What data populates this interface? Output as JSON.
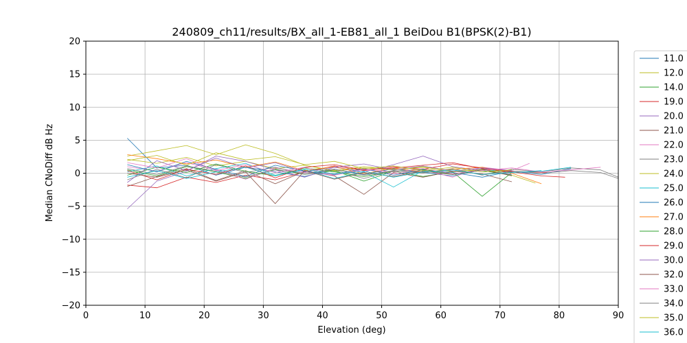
{
  "chart_data": {
    "type": "line",
    "title": "240809_ch11/results/BX_all_1-EB81_all_1 BeiDou B1(BPSK(2)-B1)",
    "xlabel": "Elevation (deg)",
    "ylabel": "Median CNoDiff dB Hz",
    "xlim": [
      0,
      90
    ],
    "ylim": [
      -20,
      20
    ],
    "xticks": [
      "0",
      "10",
      "20",
      "30",
      "40",
      "50",
      "60",
      "70",
      "80",
      "90"
    ],
    "yticks": [
      "−20",
      "−15",
      "−10",
      "−5",
      "0",
      "5",
      "10",
      "15",
      "20"
    ],
    "grid": true,
    "legend_position": "outside-right",
    "series": [
      {
        "name": "11.0",
        "color": "#1f77b4",
        "x": [
          7,
          12,
          17,
          22,
          27,
          32,
          37,
          42,
          47,
          52,
          57,
          62,
          67,
          72
        ],
        "y": [
          5.3,
          0.8,
          1.2,
          -0.3,
          0.9,
          0.2,
          -0.5,
          0.6,
          -0.2,
          0.7,
          0.1,
          -0.4,
          0.5,
          0.2
        ]
      },
      {
        "name": "12.0",
        "color": "#bcbd22",
        "x": [
          7,
          12,
          17,
          22,
          27,
          32,
          37,
          42,
          47,
          52,
          57,
          62,
          67,
          72,
          76
        ],
        "y": [
          2.1,
          1.5,
          2.4,
          1.1,
          1.8,
          0.7,
          1.2,
          0.3,
          0.8,
          0.5,
          1.0,
          0.2,
          0.6,
          -0.3,
          -1.5
        ]
      },
      {
        "name": "14.0",
        "color": "#2ca02c",
        "x": [
          7,
          12,
          17,
          22,
          27,
          32,
          37,
          42,
          47,
          52,
          57,
          62,
          67,
          72
        ],
        "y": [
          0.5,
          -0.4,
          1.0,
          0.2,
          -0.8,
          0.6,
          -0.2,
          0.4,
          -1.2,
          0.3,
          -0.5,
          0.2,
          -3.5,
          0.1
        ]
      },
      {
        "name": "19.0",
        "color": "#d62728",
        "x": [
          7,
          12,
          17,
          22,
          27,
          32,
          37,
          42,
          47,
          52,
          57,
          62,
          67,
          72,
          78
        ],
        "y": [
          -1.8,
          -2.2,
          -0.6,
          -1.4,
          -0.3,
          -1.0,
          0.2,
          1.1,
          0.4,
          1.0,
          0.6,
          1.4,
          0.8,
          0.3,
          0.1
        ]
      },
      {
        "name": "20.0",
        "color": "#9467bd",
        "x": [
          7,
          12,
          17,
          22,
          27,
          32,
          37,
          42,
          47,
          52,
          57,
          62,
          67,
          72
        ],
        "y": [
          -5.4,
          -1.2,
          0.3,
          2.6,
          1.8,
          0.5,
          -0.6,
          0.9,
          0.2,
          1.3,
          2.6,
          1.0,
          0.4,
          -0.2
        ]
      },
      {
        "name": "21.0",
        "color": "#8c564b",
        "x": [
          7,
          12,
          17,
          22,
          27,
          32,
          37,
          42,
          47,
          52,
          57,
          62,
          67,
          72
        ],
        "y": [
          -2.0,
          -0.5,
          0.7,
          -1.1,
          0.4,
          -1.6,
          0.3,
          -0.4,
          -3.2,
          0.1,
          -0.6,
          0.3,
          -0.1,
          -1.3
        ]
      },
      {
        "name": "22.0",
        "color": "#e377c2",
        "x": [
          7,
          12,
          17,
          22,
          27,
          32,
          37,
          42,
          47,
          52,
          57,
          62,
          67,
          72,
          75
        ],
        "y": [
          1.0,
          0.3,
          1.6,
          0.5,
          -0.9,
          0.8,
          0.1,
          -0.3,
          0.6,
          -0.1,
          0.5,
          -0.6,
          0.9,
          0.4,
          1.5
        ]
      },
      {
        "name": "23.0",
        "color": "#7f7f7f",
        "x": [
          7,
          12,
          17,
          22,
          27,
          32,
          37,
          42,
          47,
          52,
          57,
          62,
          67,
          72,
          77,
          82,
          87,
          90
        ],
        "y": [
          -1.0,
          0.6,
          -0.7,
          1.3,
          0.1,
          0.9,
          -0.2,
          0.5,
          -0.8,
          0.4,
          0.0,
          0.7,
          -0.3,
          0.6,
          0.2,
          0.8,
          0.5,
          -0.6
        ]
      },
      {
        "name": "24.0",
        "color": "#bcbd22",
        "x": [
          7,
          12,
          17,
          22,
          27,
          32,
          37,
          42,
          47,
          52,
          57,
          62,
          67,
          72
        ],
        "y": [
          2.6,
          3.4,
          4.2,
          2.8,
          4.3,
          3.0,
          1.2,
          0.4,
          1.0,
          0.6,
          0.9,
          0.3,
          0.5,
          0.1
        ]
      },
      {
        "name": "25.0",
        "color": "#17becf",
        "x": [
          7,
          12,
          17,
          22,
          27,
          32,
          37,
          42,
          47,
          52,
          57,
          62,
          67,
          72,
          77,
          82
        ],
        "y": [
          0.2,
          1.1,
          -0.4,
          0.7,
          1.5,
          -0.3,
          0.5,
          -0.8,
          0.2,
          -2.1,
          0.4,
          -0.2,
          0.6,
          0.1,
          0.3,
          0.9
        ]
      },
      {
        "name": "26.0",
        "color": "#1f77b4",
        "x": [
          7,
          12,
          17,
          22,
          27,
          32,
          37,
          42,
          47,
          52,
          57,
          62,
          67,
          72,
          77,
          82
        ],
        "y": [
          1.3,
          0.2,
          1.8,
          0.6,
          -0.5,
          1.2,
          0.3,
          -0.2,
          0.7,
          -0.3,
          0.5,
          0.1,
          -0.6,
          0.3,
          -0.2,
          0.7
        ]
      },
      {
        "name": "27.0",
        "color": "#ff7f0e",
        "x": [
          7,
          12,
          17,
          22,
          27,
          32,
          37,
          42,
          47,
          52,
          57,
          62,
          67,
          72,
          77
        ],
        "y": [
          2.8,
          2.2,
          1.4,
          2.0,
          0.9,
          1.7,
          0.4,
          1.0,
          -0.1,
          0.8,
          0.2,
          0.6,
          0.9,
          0.0,
          -1.6
        ]
      },
      {
        "name": "28.0",
        "color": "#2ca02c",
        "x": [
          7,
          12,
          17,
          22,
          27,
          32,
          37,
          42,
          47,
          52,
          57,
          62,
          67,
          72
        ],
        "y": [
          -0.3,
          0.9,
          0.1,
          1.4,
          0.3,
          -0.4,
          0.8,
          0.2,
          -0.5,
          0.3,
          0.6,
          -0.2,
          0.4,
          -0.3
        ]
      },
      {
        "name": "29.0",
        "color": "#d62728",
        "x": [
          7,
          12,
          17,
          22,
          27,
          32,
          37,
          42,
          47,
          52,
          57,
          62,
          67,
          72,
          77,
          81
        ],
        "y": [
          0.4,
          -1.0,
          0.6,
          -0.2,
          1.1,
          -0.7,
          0.9,
          1.3,
          0.5,
          0.8,
          1.2,
          1.6,
          0.7,
          0.2,
          -0.4,
          -0.6
        ]
      },
      {
        "name": "30.0",
        "color": "#9467bd",
        "x": [
          7,
          12,
          17,
          22,
          27,
          32,
          37,
          42,
          47,
          52,
          57,
          62,
          67,
          72
        ],
        "y": [
          -1.4,
          1.9,
          0.4,
          2.3,
          0.8,
          1.6,
          0.2,
          0.9,
          1.4,
          0.5,
          1.1,
          0.3,
          0.8,
          0.4
        ]
      },
      {
        "name": "32.0",
        "color": "#8c564b",
        "x": [
          7,
          12,
          17,
          22,
          27,
          32,
          37,
          42,
          47,
          52,
          57,
          62,
          67,
          72
        ],
        "y": [
          0.0,
          -0.6,
          0.5,
          -1.2,
          0.2,
          -4.6,
          0.4,
          -0.9,
          0.1,
          -0.5,
          0.3,
          -0.2,
          0.6,
          -0.4
        ]
      },
      {
        "name": "33.0",
        "color": "#e377c2",
        "x": [
          7,
          12,
          17,
          22,
          27,
          32,
          37,
          42,
          47,
          52,
          57,
          62,
          67,
          72,
          77,
          82,
          87
        ],
        "y": [
          1.6,
          0.8,
          2.2,
          0.4,
          1.3,
          0.1,
          0.9,
          -0.3,
          0.6,
          0.2,
          0.7,
          -0.1,
          0.4,
          0.8,
          0.2,
          0.5,
          0.9
        ]
      },
      {
        "name": "34.0",
        "color": "#7f7f7f",
        "x": [
          7,
          12,
          17,
          22,
          27,
          32,
          37,
          42,
          47,
          52,
          57,
          62,
          67,
          72,
          77,
          82,
          87,
          90
        ],
        "y": [
          0.7,
          -0.2,
          1.1,
          0.3,
          -0.6,
          0.5,
          0.0,
          0.6,
          -0.3,
          0.4,
          0.1,
          0.5,
          -0.2,
          0.3,
          0.0,
          0.4,
          0.1,
          -0.8
        ]
      },
      {
        "name": "35.0",
        "color": "#bcbd22",
        "x": [
          7,
          12,
          17,
          22,
          27,
          32,
          37,
          42,
          47,
          52,
          57,
          62,
          67,
          72
        ],
        "y": [
          1.9,
          2.7,
          1.2,
          3.1,
          2.0,
          2.5,
          1.3,
          1.8,
          0.7,
          1.1,
          0.4,
          0.9,
          0.2,
          0.5
        ]
      },
      {
        "name": "36.0",
        "color": "#17becf",
        "x": [
          7,
          12,
          17,
          22,
          27,
          32,
          37,
          42,
          47,
          52,
          57,
          62,
          67,
          72,
          77
        ],
        "y": [
          -0.6,
          0.4,
          -0.8,
          0.2,
          0.9,
          -0.4,
          0.6,
          -0.1,
          0.3,
          -0.6,
          0.2,
          0.5,
          -0.2,
          0.1,
          0.4
        ]
      }
    ]
  }
}
